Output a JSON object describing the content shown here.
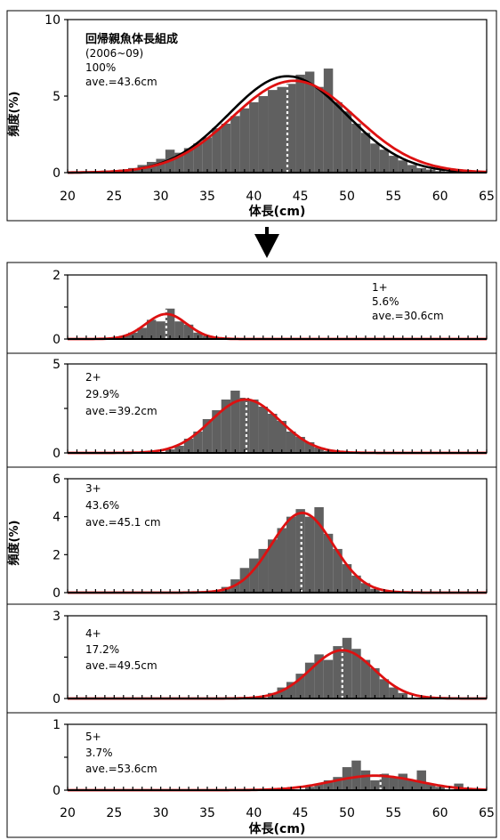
{
  "chart_data": [
    {
      "type": "bar",
      "panel": "all",
      "annotation": [
        "回帰親魚体長組成",
        "(2006~09)",
        "100%",
        "ave.=43.6cm"
      ],
      "xlabel": "体長(cm)",
      "ylabel": "頻度(%)",
      "xlim": [
        20,
        65
      ],
      "ylim": [
        0,
        10
      ],
      "xticks": [
        "20",
        "25",
        "30",
        "35",
        "40",
        "45",
        "50",
        "55",
        "60",
        "65"
      ],
      "yticks": [
        "0",
        "5",
        "10"
      ],
      "mean": 43.6,
      "bar_color": "#606060",
      "bins": [
        {
          "x": 26,
          "y": 0.2
        },
        {
          "x": 27,
          "y": 0.3
        },
        {
          "x": 28,
          "y": 0.5
        },
        {
          "x": 29,
          "y": 0.7
        },
        {
          "x": 30,
          "y": 0.9
        },
        {
          "x": 31,
          "y": 1.5
        },
        {
          "x": 32,
          "y": 1.3
        },
        {
          "x": 33,
          "y": 1.6
        },
        {
          "x": 34,
          "y": 1.9
        },
        {
          "x": 35,
          "y": 2.3
        },
        {
          "x": 36,
          "y": 2.9
        },
        {
          "x": 37,
          "y": 3.2
        },
        {
          "x": 38,
          "y": 3.7
        },
        {
          "x": 39,
          "y": 4.2
        },
        {
          "x": 40,
          "y": 4.6
        },
        {
          "x": 41,
          "y": 5.0
        },
        {
          "x": 42,
          "y": 5.4
        },
        {
          "x": 43,
          "y": 5.6
        },
        {
          "x": 44,
          "y": 5.8
        },
        {
          "x": 45,
          "y": 6.4
        },
        {
          "x": 46,
          "y": 6.6
        },
        {
          "x": 47,
          "y": 5.6
        },
        {
          "x": 48,
          "y": 6.8
        },
        {
          "x": 49,
          "y": 4.6
        },
        {
          "x": 50,
          "y": 4.0
        },
        {
          "x": 51,
          "y": 3.2
        },
        {
          "x": 52,
          "y": 2.6
        },
        {
          "x": 53,
          "y": 1.9
        },
        {
          "x": 54,
          "y": 1.5
        },
        {
          "x": 55,
          "y": 1.1
        },
        {
          "x": 56,
          "y": 0.8
        },
        {
          "x": 57,
          "y": 0.5
        },
        {
          "x": 58,
          "y": 0.3
        },
        {
          "x": 59,
          "y": 0.2
        },
        {
          "x": 60,
          "y": 0.1
        }
      ],
      "series": [
        {
          "kind": "normal",
          "mean": 43.6,
          "sd": 6.3,
          "peak": 6.3,
          "color": "#000000"
        },
        {
          "kind": "normal",
          "mean": 44.3,
          "sd": 6.6,
          "peak": 6.0,
          "color": "#dd1111"
        }
      ]
    },
    {
      "type": "bar",
      "panel": "1+",
      "annotation": [
        "1+",
        "5.6%",
        "ave.=30.6cm"
      ],
      "xlim": [
        20,
        65
      ],
      "ylim": [
        0,
        2
      ],
      "yticks": [
        "0",
        "",
        "2"
      ],
      "mean": 30.6,
      "bar_color": "#606060",
      "bins": [
        {
          "x": 26,
          "y": 0.1
        },
        {
          "x": 27,
          "y": 0.2
        },
        {
          "x": 28,
          "y": 0.35
        },
        {
          "x": 29,
          "y": 0.6
        },
        {
          "x": 30,
          "y": 0.55
        },
        {
          "x": 31,
          "y": 0.95
        },
        {
          "x": 32,
          "y": 0.55
        },
        {
          "x": 33,
          "y": 0.45
        },
        {
          "x": 34,
          "y": 0.2
        },
        {
          "x": 35,
          "y": 0.1
        }
      ],
      "series": [
        {
          "kind": "normal",
          "mean": 30.6,
          "sd": 2.2,
          "peak": 0.78,
          "color": "#dd1111"
        }
      ]
    },
    {
      "type": "bar",
      "panel": "2+",
      "annotation": [
        "2+",
        "29.9%",
        "ave.=39.2cm"
      ],
      "xlim": [
        20,
        65
      ],
      "ylim": [
        0,
        5
      ],
      "yticks": [
        "0",
        "",
        "5"
      ],
      "mean": 39.2,
      "bar_color": "#606060",
      "bins": [
        {
          "x": 31,
          "y": 0.2
        },
        {
          "x": 32,
          "y": 0.4
        },
        {
          "x": 33,
          "y": 0.8
        },
        {
          "x": 34,
          "y": 1.2
        },
        {
          "x": 35,
          "y": 1.9
        },
        {
          "x": 36,
          "y": 2.4
        },
        {
          "x": 37,
          "y": 3.0
        },
        {
          "x": 38,
          "y": 3.5
        },
        {
          "x": 39,
          "y": 3.1
        },
        {
          "x": 40,
          "y": 3.0
        },
        {
          "x": 41,
          "y": 2.6
        },
        {
          "x": 42,
          "y": 2.2
        },
        {
          "x": 43,
          "y": 1.8
        },
        {
          "x": 44,
          "y": 1.2
        },
        {
          "x": 45,
          "y": 0.9
        },
        {
          "x": 46,
          "y": 0.6
        },
        {
          "x": 47,
          "y": 0.3
        },
        {
          "x": 48,
          "y": 0.1
        }
      ],
      "series": [
        {
          "kind": "normal",
          "mean": 39.1,
          "sd": 3.7,
          "peak": 3.0,
          "color": "#dd1111"
        }
      ]
    },
    {
      "type": "bar",
      "panel": "3+",
      "annotation": [
        "3+",
        "43.6%",
        "ave.=45.1 cm"
      ],
      "ylabel": "頻度(%)",
      "xlim": [
        20,
        65
      ],
      "ylim": [
        0,
        6
      ],
      "yticks": [
        "0",
        "2",
        "4",
        "6"
      ],
      "mean": 45.1,
      "bar_color": "#606060",
      "bins": [
        {
          "x": 37,
          "y": 0.3
        },
        {
          "x": 38,
          "y": 0.7
        },
        {
          "x": 39,
          "y": 1.3
        },
        {
          "x": 40,
          "y": 1.8
        },
        {
          "x": 41,
          "y": 2.3
        },
        {
          "x": 42,
          "y": 2.8
        },
        {
          "x": 43,
          "y": 3.4
        },
        {
          "x": 44,
          "y": 4.0
        },
        {
          "x": 45,
          "y": 4.4
        },
        {
          "x": 46,
          "y": 4.0
        },
        {
          "x": 47,
          "y": 4.5
        },
        {
          "x": 48,
          "y": 3.1
        },
        {
          "x": 49,
          "y": 2.3
        },
        {
          "x": 50,
          "y": 1.5
        },
        {
          "x": 51,
          "y": 0.9
        },
        {
          "x": 52,
          "y": 0.5
        },
        {
          "x": 53,
          "y": 0.2
        }
      ],
      "series": [
        {
          "kind": "normal",
          "mean": 45.2,
          "sd": 3.3,
          "peak": 4.2,
          "color": "#dd1111"
        }
      ]
    },
    {
      "type": "bar",
      "panel": "4+",
      "annotation": [
        "4+",
        "17.2%",
        "ave.=49.5cm"
      ],
      "xlim": [
        20,
        65
      ],
      "ylim": [
        0,
        3
      ],
      "yticks": [
        "0",
        "",
        "3"
      ],
      "mean": 49.5,
      "bar_color": "#606060",
      "bins": [
        {
          "x": 42,
          "y": 0.2
        },
        {
          "x": 43,
          "y": 0.4
        },
        {
          "x": 44,
          "y": 0.6
        },
        {
          "x": 45,
          "y": 0.9
        },
        {
          "x": 46,
          "y": 1.3
        },
        {
          "x": 47,
          "y": 1.6
        },
        {
          "x": 48,
          "y": 1.4
        },
        {
          "x": 49,
          "y": 1.9
        },
        {
          "x": 50,
          "y": 2.2
        },
        {
          "x": 51,
          "y": 1.8
        },
        {
          "x": 52,
          "y": 1.4
        },
        {
          "x": 53,
          "y": 1.1
        },
        {
          "x": 54,
          "y": 0.7
        },
        {
          "x": 55,
          "y": 0.4
        },
        {
          "x": 56,
          "y": 0.2
        }
      ],
      "series": [
        {
          "kind": "normal",
          "mean": 49.5,
          "sd": 3.4,
          "peak": 1.75,
          "color": "#dd1111"
        }
      ]
    },
    {
      "type": "bar",
      "panel": "5+",
      "annotation": [
        "5+",
        "3.7%",
        "ave.=53.6cm"
      ],
      "xlabel": "体長(cm)",
      "xlim": [
        20,
        65
      ],
      "ylim": [
        0,
        1
      ],
      "xticks": [
        "20",
        "25",
        "30",
        "35",
        "40",
        "45",
        "50",
        "55",
        "60",
        "65"
      ],
      "yticks": [
        "0",
        "",
        "1"
      ],
      "mean": 53.6,
      "bar_color": "#606060",
      "bins": [
        {
          "x": 46,
          "y": 0.05
        },
        {
          "x": 47,
          "y": 0.1
        },
        {
          "x": 48,
          "y": 0.15
        },
        {
          "x": 49,
          "y": 0.2
        },
        {
          "x": 50,
          "y": 0.35
        },
        {
          "x": 51,
          "y": 0.45
        },
        {
          "x": 52,
          "y": 0.3
        },
        {
          "x": 53,
          "y": 0.15
        },
        {
          "x": 54,
          "y": 0.25
        },
        {
          "x": 55,
          "y": 0.2
        },
        {
          "x": 56,
          "y": 0.25
        },
        {
          "x": 57,
          "y": 0.15
        },
        {
          "x": 58,
          "y": 0.3
        },
        {
          "x": 59,
          "y": 0.1
        },
        {
          "x": 60,
          "y": 0.05
        },
        {
          "x": 62,
          "y": 0.1
        }
      ],
      "series": [
        {
          "kind": "normal",
          "mean": 53.0,
          "sd": 4.6,
          "peak": 0.22,
          "color": "#dd1111"
        }
      ]
    }
  ]
}
